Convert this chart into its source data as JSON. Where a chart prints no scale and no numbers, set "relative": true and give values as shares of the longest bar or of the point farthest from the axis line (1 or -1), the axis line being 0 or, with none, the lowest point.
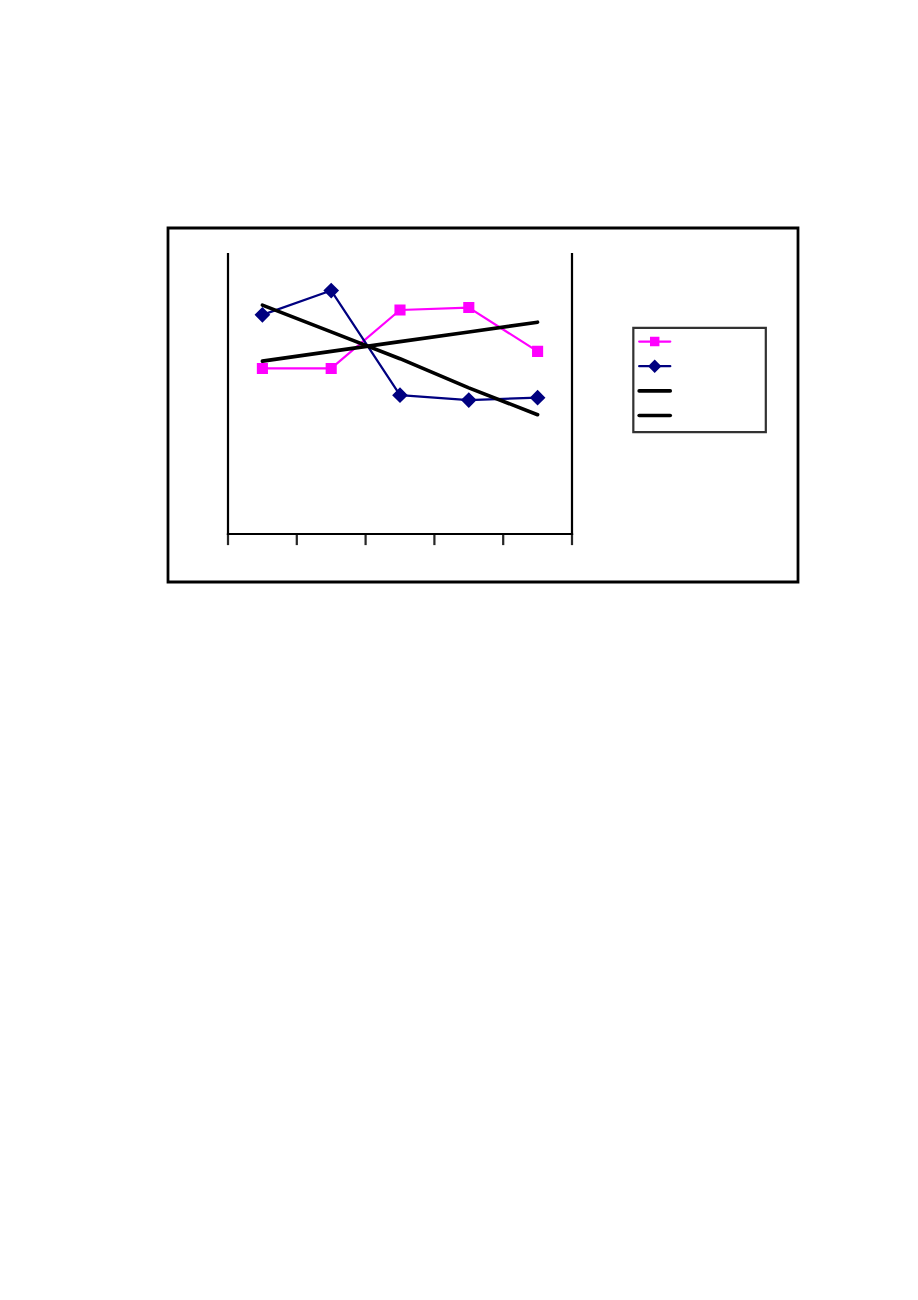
{
  "chart_data": {
    "type": "line",
    "relative": true,
    "categories": [
      null,
      null,
      null,
      null,
      null
    ],
    "series": [
      {
        "color": "#ff00ff",
        "marker": "square",
        "values": [
          0.68,
          0.68,
          0.92,
          0.93,
          0.75
        ]
      },
      {
        "color": "#000080",
        "marker": "diamond",
        "values": [
          0.9,
          1,
          0.57,
          0.55,
          0.56
        ]
      },
      {
        "color": "#000000",
        "marker": "none",
        "values": [
          0.71,
          0.75,
          0.79,
          0.83,
          0.87
        ]
      },
      {
        "color": "#000000",
        "marker": "none",
        "values": [
          0.94,
          0.83,
          0.72,
          0.6,
          0.49
        ]
      }
    ],
    "grid": false,
    "tick_labels": false
  }
}
